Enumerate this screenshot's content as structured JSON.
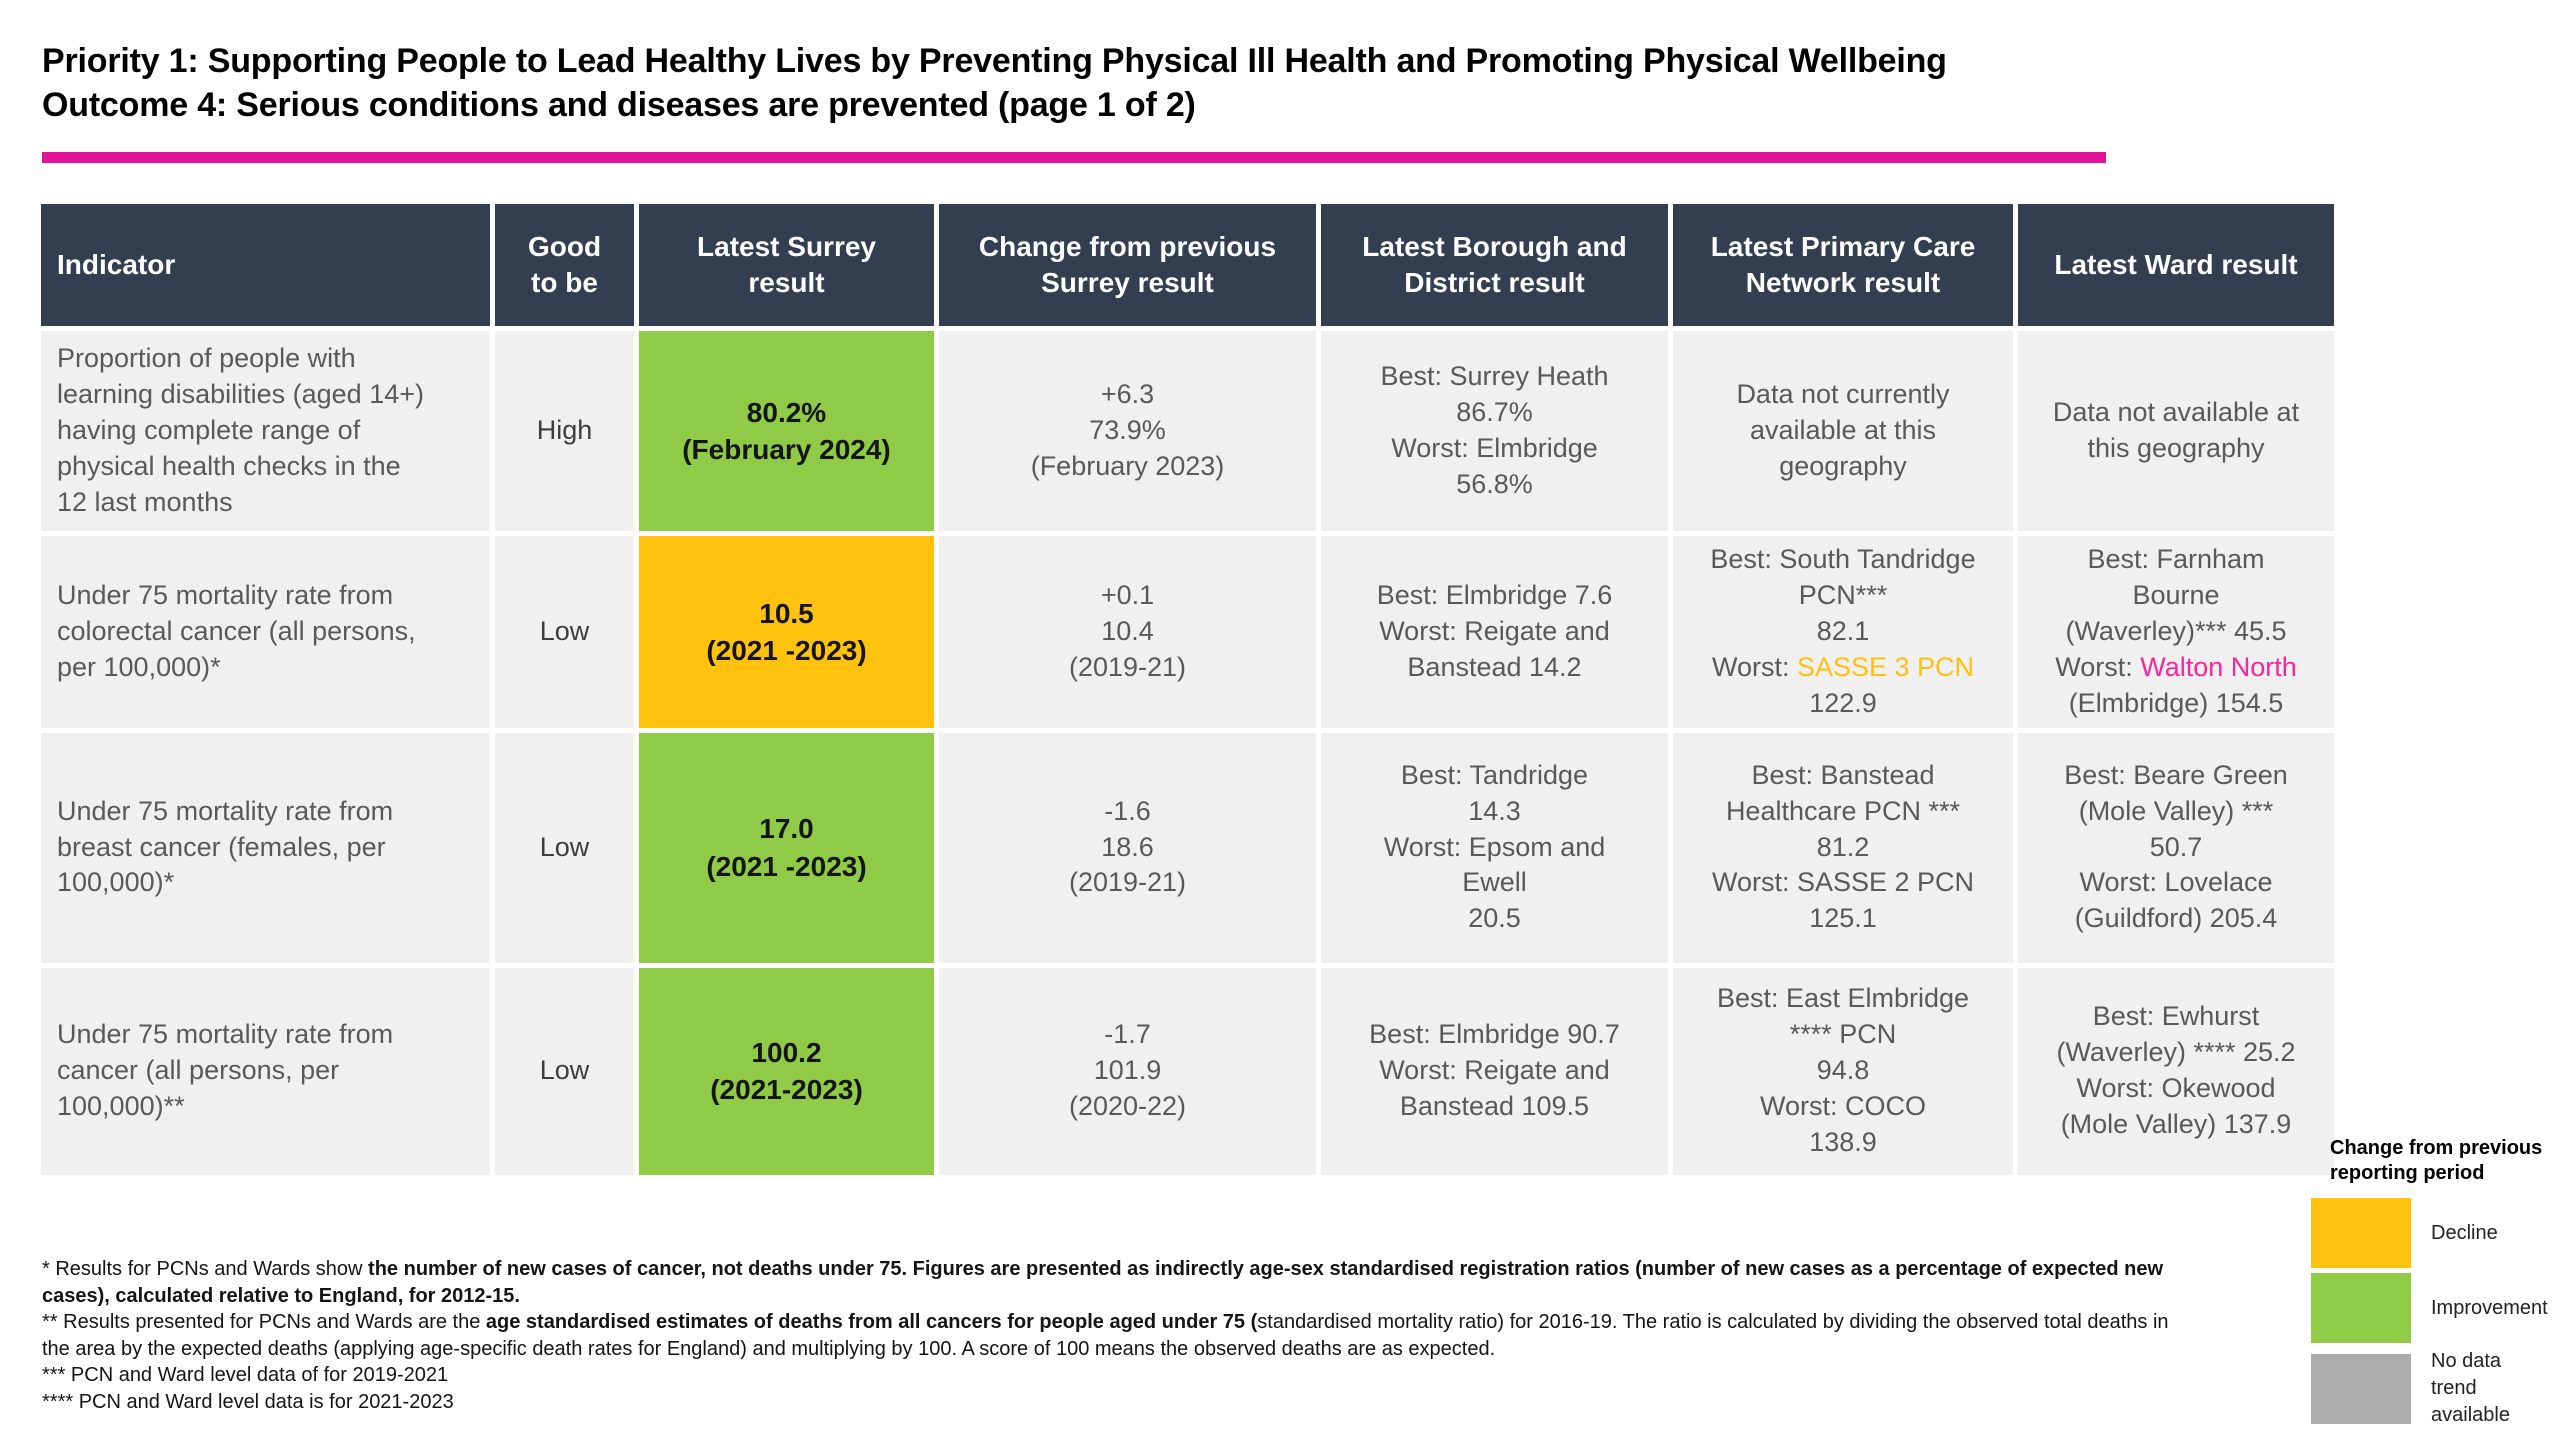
{
  "page": {
    "title": "Priority 1: Supporting People to Lead Healthy Lives by Preventing Physical Ill Health and Promoting Physical Wellbeing\nOutcome 4: Serious conditions and diseases are prevented (page 1 of 2)"
  },
  "colors": {
    "header_bg": "#333F50",
    "row_bg": "#F0F0F0",
    "green": "#8FCB46",
    "amber": "#FFC20D",
    "gray": "#ACACAC",
    "pink_rule": "#E2129B",
    "pink_text": "#F8259C",
    "amber_text": "#FFC10E",
    "text_gray": "#595959"
  },
  "table": {
    "headers": [
      "Indicator",
      "Good\nto be",
      "Latest Surrey\nresult",
      "Change from previous\nSurrey result",
      "Latest Borough and\nDistrict result",
      "Latest Primary Care\nNetwork result",
      "Latest Ward result"
    ],
    "rows": [
      {
        "indicator": "Proportion of people with\nlearning disabilities (aged 14+)\nhaving complete range of\nphysical health checks in the\n12 last months",
        "good_to_be": "High",
        "surrey_result": "80.2%\n(February 2024)",
        "surrey_result_bg": "green",
        "change": "+6.3\n73.9%\n(February 2023)",
        "borough": "Best: Surrey Heath\n86.7%\nWorst: Elmbridge\n56.8%",
        "pcn": "Data not currently\navailable at this\ngeography",
        "ward": "Data not available at\nthis geography"
      },
      {
        "indicator": "Under 75 mortality rate from\ncolorectal cancer (all persons,\nper 100,000)*",
        "good_to_be": "Low",
        "surrey_result": "10.5\n(2021 -2023)",
        "surrey_result_bg": "amber",
        "change": "+0.1\n10.4\n(2019-21)",
        "borough": "Best: Elmbridge 7.6\nWorst: Reigate and\nBanstead 14.2",
        "pcn": "Best: South Tandridge\nPCN***\n82.1\nWorst: SASSE 3 PCN\n122.9",
        "pcn_highlight": {
          "text": "SASSE 3 PCN",
          "color": "amber_text"
        },
        "ward": "Best: Farnham\nBourne\n(Waverley)*** 45.5\nWorst: Walton North\n(Elmbridge) 154.5",
        "ward_highlight": {
          "text": "Walton North",
          "color": "pink_text"
        }
      },
      {
        "indicator": "Under 75 mortality rate from\nbreast cancer (females, per\n100,000)*",
        "good_to_be": "Low",
        "surrey_result": "17.0\n(2021 -2023)",
        "surrey_result_bg": "green",
        "change": "-1.6\n18.6\n(2019-21)",
        "borough": "Best: Tandridge\n14.3\nWorst: Epsom and\nEwell\n20.5",
        "pcn": "Best: Banstead\nHealthcare PCN ***\n81.2\nWorst: SASSE 2 PCN\n125.1",
        "ward": "Best: Beare Green\n(Mole Valley) ***\n50.7\nWorst: Lovelace\n(Guildford) 205.4"
      },
      {
        "indicator": "Under 75 mortality rate from\ncancer (all persons, per\n100,000)**",
        "good_to_be": "Low",
        "surrey_result": "100.2\n(2021-2023)",
        "surrey_result_bg": "green",
        "change": "-1.7\n101.9\n(2020-22)",
        "borough": "Best: Elmbridge 90.7\nWorst: Reigate and\nBanstead 109.5",
        "pcn": "Best: East Elmbridge\n**** PCN\n94.8\nWorst: COCO\n138.9",
        "ward": "Best: Ewhurst\n(Waverley) **** 25.2\nWorst: Okewood\n(Mole Valley) 137.9"
      }
    ]
  },
  "footnotes": [
    {
      "runs": [
        {
          "t": "* Results for PCNs and Wards show ",
          "b": false
        },
        {
          "t": "the number of new cases of cancer, not deaths under 75. Figures are presented as indirectly age-sex standardised registration ratios (number of new cases as a percentage of expected new cases), calculated relative to England, for 2012-15.",
          "b": true
        }
      ]
    },
    {
      "runs": [
        {
          "t": "** Results presented for PCNs and Wards are the ",
          "b": false
        },
        {
          "t": "age standardised estimates of deaths from all cancers for people aged under 75 (",
          "b": true
        },
        {
          "t": "standardised mortality ratio) for 2016-19. The ratio is calculated by dividing the observed total deaths in the area by the expected deaths (applying age-specific death rates for England) and multiplying by 100. A score of 100 means the observed deaths are as expected.",
          "b": false
        }
      ]
    },
    {
      "runs": [
        {
          "t": "*** PCN and Ward level data of for 2019-2021",
          "b": false
        }
      ]
    },
    {
      "runs": [
        {
          "t": "**** PCN and Ward level data is for 2021-2023",
          "b": false
        }
      ]
    }
  ],
  "legend": {
    "title": "Change from previous\nreporting period",
    "items": [
      {
        "label": "Decline",
        "color_key": "amber"
      },
      {
        "label": "Improvement",
        "color_key": "green"
      },
      {
        "label": "No data\ntrend\navailable",
        "color_key": "gray"
      }
    ]
  }
}
